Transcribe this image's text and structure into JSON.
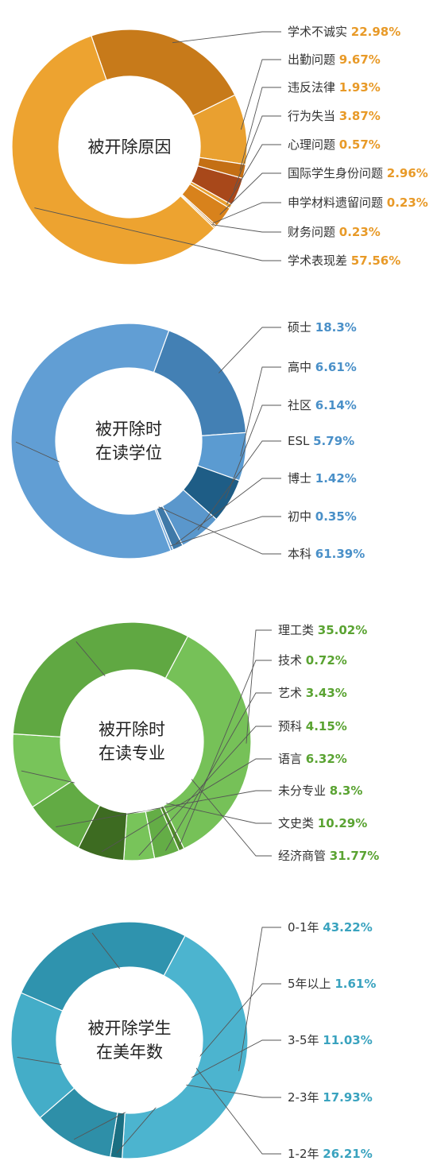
{
  "chart_data": [
    {
      "type": "donut",
      "center_label": [
        "被开除原因"
      ],
      "accent_color": "#e89a28",
      "categories": [
        "学术不诚实",
        "出勤问题",
        "违反法律",
        "行为失当",
        "心理问题",
        "国际学生身份问题",
        "申学材料遗留问题",
        "财务问题",
        "学术表现差"
      ],
      "values": [
        22.98,
        9.67,
        1.93,
        3.87,
        0.57,
        2.96,
        0.23,
        0.23,
        57.56
      ],
      "value_labels": [
        "22.98%",
        "9.67%",
        "1.93%",
        "3.87%",
        "0.57%",
        "2.96%",
        "0.23%",
        "0.23%",
        "57.56%"
      ],
      "colors": [
        "#c77a1a",
        "#e9a030",
        "#c46f14",
        "#a8481a",
        "#e9a030",
        "#d8821c",
        "#bb6a12",
        "#e9a030",
        "#eda330"
      ]
    },
    {
      "type": "donut",
      "center_label": [
        "被开除时",
        "在读学位"
      ],
      "accent_color": "#4a90c8",
      "categories": [
        "硕士",
        "高中",
        "社区",
        "ESL",
        "博士",
        "初中",
        "本科"
      ],
      "values": [
        18.3,
        6.61,
        6.14,
        5.79,
        1.42,
        0.35,
        61.39
      ],
      "value_labels": [
        "18.3%",
        "6.61%",
        "6.14%",
        "5.79%",
        "1.42%",
        "0.35%",
        "61.39%"
      ],
      "colors": [
        "#4380b4",
        "#5b9bd1",
        "#1e5d86",
        "#5a97cc",
        "#3f79a8",
        "#6fa5d8",
        "#619ed4"
      ]
    },
    {
      "type": "donut",
      "center_label": [
        "被开除时",
        "在读专业"
      ],
      "accent_color": "#5aa332",
      "categories": [
        "理工类",
        "技术",
        "艺术",
        "预科",
        "语言",
        "未分专业",
        "文史类",
        "经济商管"
      ],
      "values": [
        35.02,
        0.72,
        3.43,
        4.15,
        6.32,
        8.3,
        10.29,
        31.77
      ],
      "value_labels": [
        "35.02%",
        "0.72%",
        "3.43%",
        "4.15%",
        "6.32%",
        "8.3%",
        "10.29%",
        "31.77%"
      ],
      "colors": [
        "#76c158",
        "#4f8a2a",
        "#64ad46",
        "#78c45a",
        "#3d6b21",
        "#62ab44",
        "#78c45a",
        "#60a842"
      ]
    },
    {
      "type": "donut",
      "center_label": [
        "被开除学生",
        "在美年数"
      ],
      "accent_color": "#3aa3bf",
      "categories": [
        "0-1年",
        "5年以上",
        "3-5年",
        "2-3年",
        "1-2年"
      ],
      "values": [
        43.22,
        1.61,
        11.03,
        17.93,
        26.21
      ],
      "value_labels": [
        "43.22%",
        "1.61%",
        "11.03%",
        "17.93%",
        "26.21%"
      ],
      "colors": [
        "#4cb4cf",
        "#1a6f82",
        "#2e8fa8",
        "#44adc8",
        "#2f93ae"
      ]
    }
  ]
}
